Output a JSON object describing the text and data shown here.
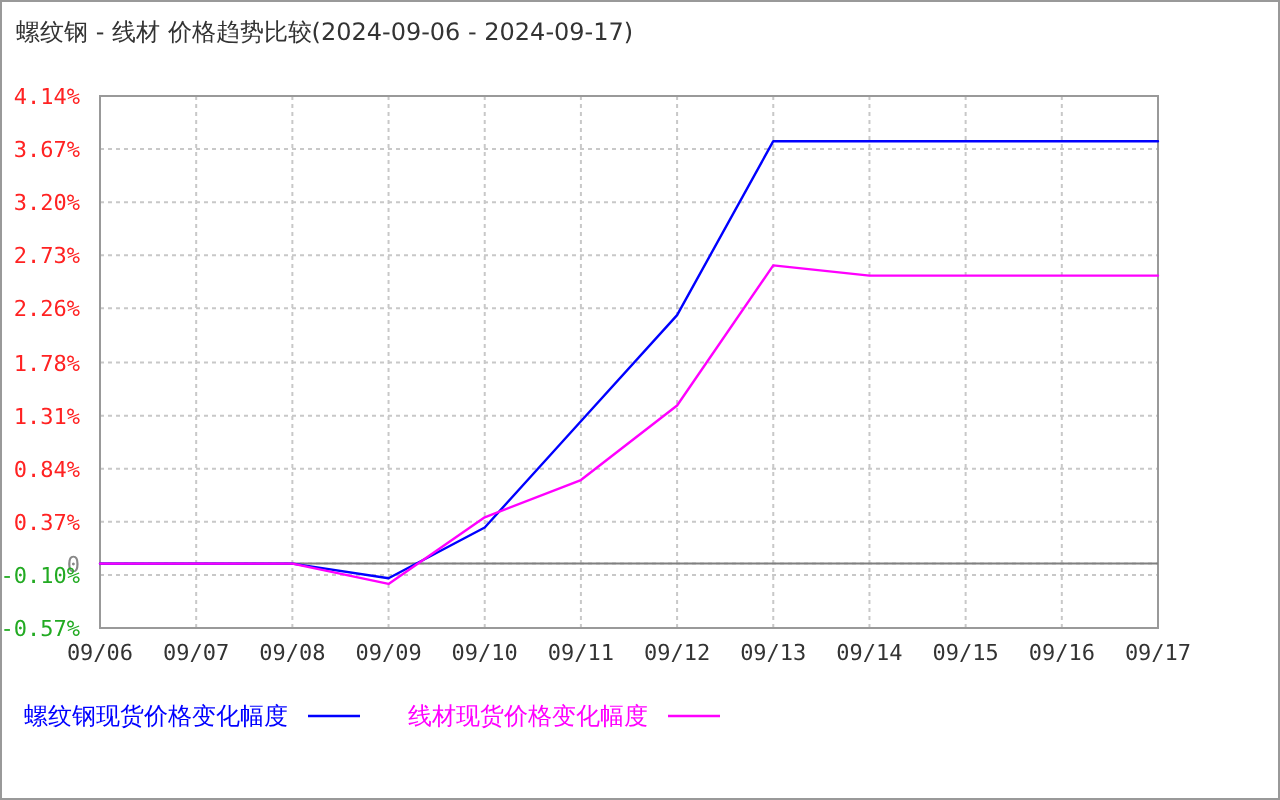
{
  "chart_data": {
    "type": "line",
    "title": "螺纹钢 - 线材 价格趋势比较(2024-09-06 - 2024-09-17)",
    "x": [
      "2024-09-06",
      "2024-09-07",
      "2024-09-08",
      "2024-09-09",
      "2024-09-10",
      "2024-09-11",
      "2024-09-12",
      "2024-09-13",
      "2024-09-14",
      "2024-09-15",
      "2024-09-16",
      "2024-09-17"
    ],
    "series": [
      {
        "name": "螺纹钢现货价格变化幅度",
        "color": "#0000ff",
        "values": [
          0,
          0,
          0,
          -0.13,
          0.32,
          1.26,
          2.2,
          3.74,
          3.74,
          3.74,
          3.74,
          3.74
        ]
      },
      {
        "name": "线材现货价格变化幅度",
        "color": "#ff00ff",
        "values": [
          0,
          0,
          0,
          -0.18,
          0.41,
          0.74,
          1.4,
          2.64,
          2.55,
          2.55,
          2.55,
          2.55
        ]
      }
    ],
    "xlim": [
      "2024-09-06",
      "2024-09-17"
    ],
    "xticks": [
      {
        "value": "2024-09-06",
        "label": "09/06"
      },
      {
        "value": "2024-09-07",
        "label": "09/07"
      },
      {
        "value": "2024-09-08",
        "label": "09/08"
      },
      {
        "value": "2024-09-09",
        "label": "09/09"
      },
      {
        "value": "2024-09-10",
        "label": "09/10"
      },
      {
        "value": "2024-09-11",
        "label": "09/11"
      },
      {
        "value": "2024-09-12",
        "label": "09/12"
      },
      {
        "value": "2024-09-13",
        "label": "09/13"
      },
      {
        "value": "2024-09-14",
        "label": "09/14"
      },
      {
        "value": "2024-09-15",
        "label": "09/15"
      },
      {
        "value": "2024-09-16",
        "label": "09/16"
      },
      {
        "value": "2024-09-17",
        "label": "09/17"
      }
    ],
    "ylim": [
      -0.57,
      4.14
    ],
    "yticks": [
      {
        "value": 4.14,
        "label": "4.14%"
      },
      {
        "value": 3.67,
        "label": "3.67%"
      },
      {
        "value": 3.2,
        "label": "3.20%"
      },
      {
        "value": 2.73,
        "label": "2.73%"
      },
      {
        "value": 2.26,
        "label": "2.26%"
      },
      {
        "value": 1.78,
        "label": "1.78%"
      },
      {
        "value": 1.31,
        "label": "1.31%"
      },
      {
        "value": 0.84,
        "label": "0.84%"
      },
      {
        "value": 0.37,
        "label": "0.37%"
      },
      {
        "value": 0,
        "label": "0"
      },
      {
        "value": -0.1,
        "label": "-0.10%"
      },
      {
        "value": -0.57,
        "label": "-0.57%"
      }
    ],
    "ref_lines": [
      {
        "axis": "y",
        "value": 0,
        "color": "#808080"
      }
    ],
    "grid": true,
    "legend": "bottom",
    "marker": "none",
    "line_style": "solid"
  }
}
